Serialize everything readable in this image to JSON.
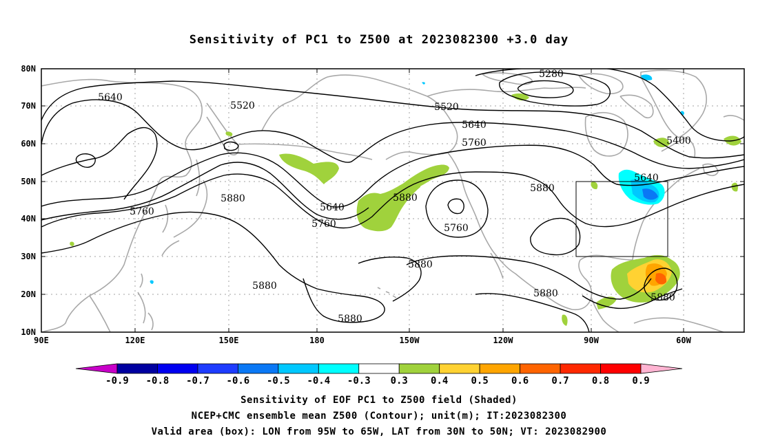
{
  "title": "Sensitivity of PC1 to Z500 at 2023082300 +3.0 day",
  "lat_labels": [
    "80N",
    "70N",
    "60N",
    "50N",
    "40N",
    "30N",
    "20N",
    "10N"
  ],
  "lon_labels": [
    "90E",
    "120E",
    "150E",
    "180",
    "150W",
    "120W",
    "90W",
    "60W"
  ],
  "contour_labels": [
    {
      "text": "5280"
    },
    {
      "text": "5520"
    },
    {
      "text": "5520"
    },
    {
      "text": "5640"
    },
    {
      "text": "5640"
    },
    {
      "text": "5640"
    },
    {
      "text": "5640"
    },
    {
      "text": "5400"
    },
    {
      "text": "5760"
    },
    {
      "text": "5760"
    },
    {
      "text": "5760"
    },
    {
      "text": "5760"
    },
    {
      "text": "5880"
    },
    {
      "text": "5880"
    },
    {
      "text": "5880"
    },
    {
      "text": "5880"
    },
    {
      "text": "5880"
    },
    {
      "text": "5880"
    },
    {
      "text": "5880"
    },
    {
      "text": "5880"
    }
  ],
  "colorbar": {
    "labels": [
      "-0.9",
      "-0.8",
      "-0.7",
      "-0.6",
      "-0.5",
      "-0.4",
      "-0.3",
      "0.3",
      "0.4",
      "0.5",
      "0.6",
      "0.7",
      "0.8",
      "0.9"
    ],
    "colors": [
      "#c800c8",
      "#0000a0",
      "#0000f0",
      "#1e3cff",
      "#0a78f5",
      "#00c8ff",
      "#00ffff",
      "#ffffff",
      "#a0d23c",
      "#ffd232",
      "#ffa500",
      "#ff6400",
      "#ff2800",
      "#ff0000",
      "#ffb4d2"
    ]
  },
  "footer": {
    "line1": "Sensitivity of EOF PC1 to Z500 field (Shaded)",
    "line2": "NCEP+CMC ensemble mean Z500 (Contour); unit(m); IT:2023082300",
    "line3": "Valid area (box): LON from 95W to 65W, LAT from 30N to 50N; VT: 2023082900"
  }
}
